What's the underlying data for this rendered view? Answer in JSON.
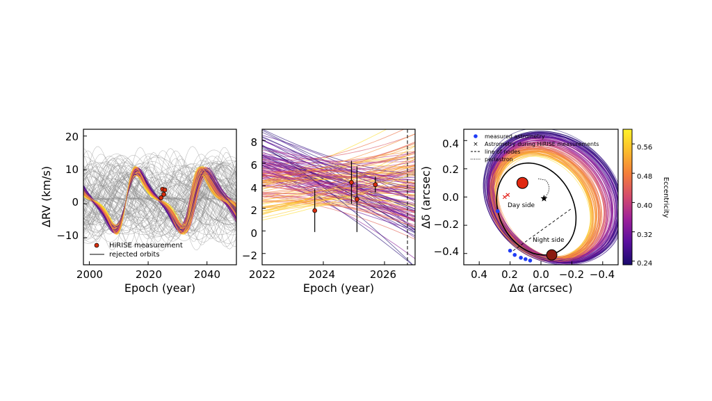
{
  "chart_data": [
    {
      "type": "line",
      "title": "",
      "xlabel": "Epoch (year)",
      "ylabel": "ΔRV (km/s)",
      "xlim": [
        1998,
        2050
      ],
      "ylim": [
        -18,
        22
      ],
      "xticks": [
        "2000",
        "2020",
        "2040"
      ],
      "xtick_values": [
        2000,
        2020,
        2040
      ],
      "yticks": [
        "20",
        "10",
        "0",
        "−10"
      ],
      "ytick_values": [
        20,
        10,
        0,
        -10
      ],
      "legend_location": "lower-left",
      "legend": [
        {
          "label": "HiRISE measurement",
          "kind": "marker",
          "color": "#d62e0e"
        },
        {
          "label": "rejected orbits",
          "kind": "line",
          "color": "#000000"
        }
      ],
      "measurements": [
        {
          "x": 2024.4,
          "y": 1.8
        },
        {
          "x": 2024.9,
          "y": 4.3
        },
        {
          "x": 2025.3,
          "y": 2.8
        },
        {
          "x": 2025.7,
          "y": 4.1
        }
      ]
    },
    {
      "type": "line",
      "title": "",
      "xlabel": "Epoch (year)",
      "ylabel": "",
      "xlim": [
        2022,
        2027
      ],
      "ylim": [
        -3,
        9
      ],
      "xticks": [
        "2022",
        "2024",
        "2026"
      ],
      "xtick_values": [
        2022,
        2024,
        2026
      ],
      "yticks": [
        "8",
        "6",
        "4",
        "2",
        "0",
        "−2"
      ],
      "ytick_values": [
        8,
        6,
        4,
        2,
        0,
        -2
      ],
      "vertical_line": {
        "x": 2026.75,
        "style": "dashed"
      },
      "measurements": [
        {
          "x": 2023.72,
          "y": 1.8,
          "err": 1.9
        },
        {
          "x": 2024.92,
          "y": 4.3,
          "err": 1.9
        },
        {
          "x": 2025.1,
          "y": 2.8,
          "err": 2.9
        },
        {
          "x": 2025.7,
          "y": 4.1,
          "err": 0.7
        }
      ]
    },
    {
      "type": "line",
      "title": "",
      "xlabel": "Δα (arcsec)",
      "ylabel": "Δδ (arcsec)",
      "xlim": [
        0.5,
        -0.5
      ],
      "ylim": [
        -0.48,
        0.48
      ],
      "xticks": [
        "0.4",
        "0.2",
        "0.0",
        "−0.2",
        "−0.4"
      ],
      "xtick_values": [
        0.4,
        0.2,
        0.0,
        -0.2,
        -0.4
      ],
      "yticks": [
        "0.4",
        "0.2",
        "0.0",
        "−0.2",
        "−0.4"
      ],
      "ytick_values": [
        0.4,
        0.2,
        0.0,
        -0.2,
        -0.4
      ],
      "legend_location": "top-left",
      "legend": [
        {
          "label": "measured astrometry",
          "kind": "dot",
          "color": "#1f3cf5"
        },
        {
          "label": "Astrometry during HiRISE measurements",
          "kind": "cross",
          "color": "#e3231c"
        },
        {
          "label": "line of nodes",
          "kind": "dashed",
          "color": "#000000"
        },
        {
          "label": "periastron",
          "kind": "dotted",
          "color": "#000000"
        }
      ],
      "annotations": {
        "day_side": "Day side",
        "night_side": "Night side"
      },
      "measured_astrometry": [
        {
          "x": 0.28,
          "y": -0.1
        },
        {
          "x": 0.2,
          "y": -0.38
        },
        {
          "x": 0.17,
          "y": -0.41
        },
        {
          "x": 0.13,
          "y": -0.43
        },
        {
          "x": 0.1,
          "y": -0.44
        },
        {
          "x": 0.07,
          "y": -0.45
        }
      ],
      "hirise_astrometry": [
        {
          "x": 0.235,
          "y": 0.0
        },
        {
          "x": 0.215,
          "y": 0.015
        }
      ],
      "star": {
        "x": -0.02,
        "y": -0.01
      },
      "colorbar": {
        "label": "Eccentricity",
        "ticks": [
          "0.56",
          "0.48",
          "0.40",
          "0.32",
          "0.24"
        ],
        "tick_values": [
          0.56,
          0.48,
          0.4,
          0.32,
          0.24
        ],
        "range": [
          0.23,
          0.6
        ],
        "colors": [
          "#fff22a",
          "#fbbc2c",
          "#f47d3a",
          "#d34a6e",
          "#9e2199",
          "#5a0f9e",
          "#1a0b6e"
        ]
      }
    }
  ]
}
